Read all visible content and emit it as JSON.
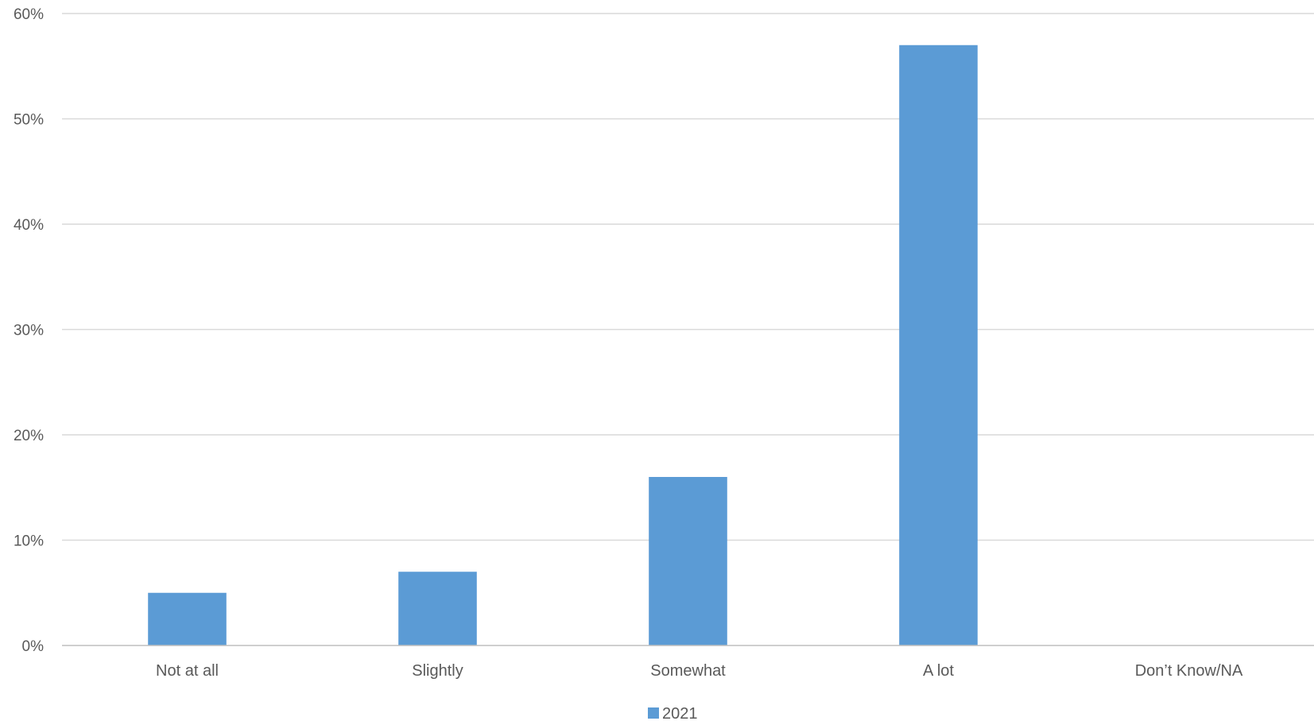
{
  "chart_data": {
    "type": "bar",
    "title": "",
    "xlabel": "",
    "ylabel": "",
    "categories": [
      "Not at all",
      "Slightly",
      "Somewhat",
      "A lot",
      "Don’t Know/NA"
    ],
    "series": [
      {
        "name": "2021",
        "values": [
          5,
          7,
          16,
          57,
          0
        ],
        "color": "#5b9bd5"
      }
    ],
    "ylim": [
      0,
      60
    ],
    "yticks": [
      0,
      10,
      20,
      30,
      40,
      50,
      60
    ],
    "ytick_labels": [
      "0%",
      "10%",
      "20%",
      "30%",
      "40%",
      "50%",
      "60%"
    ],
    "grid": true,
    "legend_position": "bottom"
  }
}
